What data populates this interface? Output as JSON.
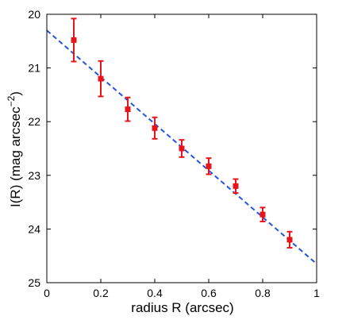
{
  "chart_data": {
    "type": "scatter",
    "title": "",
    "xlabel": "radius R (arcsec)",
    "ylabel_main": "I(R) (mag arcsec",
    "ylabel_sup": "−2",
    "ylabel_close": ")",
    "xlim": [
      0,
      1
    ],
    "ylim": [
      20,
      25
    ],
    "y_inverted": true,
    "grid": false,
    "x_ticks": [
      0,
      0.2,
      0.4,
      0.6,
      0.8,
      1
    ],
    "x_tick_labels": [
      "0",
      "0.2",
      "0.4",
      "0.6",
      "0.8",
      "1"
    ],
    "y_ticks": [
      20,
      21,
      22,
      23,
      24,
      25
    ],
    "y_tick_labels": [
      "20",
      "21",
      "22",
      "23",
      "24",
      "25"
    ],
    "series": [
      {
        "kind": "errorbar",
        "color": "#e8141b",
        "marker": "square",
        "x": [
          0.1,
          0.2,
          0.3,
          0.4,
          0.5,
          0.6,
          0.7,
          0.8,
          0.9
        ],
        "y": [
          20.48,
          21.2,
          21.77,
          22.12,
          22.5,
          22.83,
          23.2,
          23.73,
          24.2
        ],
        "err": [
          0.4,
          0.33,
          0.22,
          0.2,
          0.16,
          0.15,
          0.13,
          0.13,
          0.15
        ]
      },
      {
        "kind": "fit-line",
        "color": "#2255dd",
        "style": "dashed",
        "x": [
          0,
          1
        ],
        "y": [
          20.3,
          24.65
        ]
      }
    ]
  }
}
